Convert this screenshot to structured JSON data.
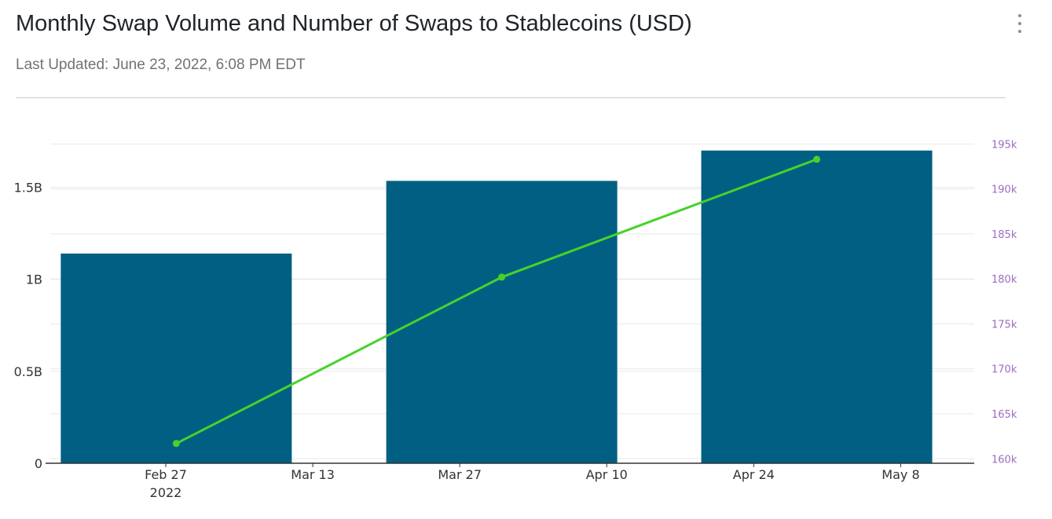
{
  "header": {
    "title": "Monthly Swap Volume and Number of Swaps to Stablecoins (USD)",
    "subtitle": "Last Updated: June 23, 2022, 6:08 PM EDT",
    "menu_icon": "vertical-ellipsis-icon"
  },
  "colors": {
    "bar": "#005f83",
    "line": "#47d22a",
    "right_axis_text": "#9d6cc2",
    "left_axis_text": "#333333",
    "grid": "#e8e8e8"
  },
  "chart_data": {
    "type": "bar",
    "grid": true,
    "x_axis": {
      "type": "date",
      "ticks": [
        {
          "date": "2022-02-27",
          "label": "Feb 27",
          "sublabel": "2022"
        },
        {
          "date": "2022-03-13",
          "label": "Mar 13"
        },
        {
          "date": "2022-03-27",
          "label": "Mar 27"
        },
        {
          "date": "2022-04-10",
          "label": "Apr 10"
        },
        {
          "date": "2022-04-24",
          "label": "Apr 24"
        },
        {
          "date": "2022-05-08",
          "label": "May 8"
        }
      ],
      "range": [
        "2022-02-16",
        "2022-05-15"
      ]
    },
    "y_left": {
      "ticks": [
        {
          "value": 0,
          "label": "0"
        },
        {
          "value": 500000000,
          "label": "0.5B"
        },
        {
          "value": 1000000000,
          "label": "1B"
        },
        {
          "value": 1500000000,
          "label": "1.5B"
        }
      ],
      "range": [
        0,
        1750000000
      ]
    },
    "y_right": {
      "ticks": [
        {
          "value": 160000,
          "label": "160k"
        },
        {
          "value": 165000,
          "label": "165k"
        },
        {
          "value": 170000,
          "label": "170k"
        },
        {
          "value": 175000,
          "label": "175k"
        },
        {
          "value": 180000,
          "label": "180k"
        },
        {
          "value": 185000,
          "label": "185k"
        },
        {
          "value": 190000,
          "label": "190k"
        },
        {
          "value": 195000,
          "label": "195k"
        }
      ],
      "range": [
        159500,
        195300
      ]
    },
    "bars": {
      "axis": "left",
      "points": [
        {
          "date": "2022-02-28",
          "value": 1140000000
        },
        {
          "date": "2022-03-31",
          "value": 1535000000
        },
        {
          "date": "2022-04-30",
          "value": 1700000000
        }
      ]
    },
    "line": {
      "axis": "right",
      "points": [
        {
          "date": "2022-02-28",
          "value": 161700
        },
        {
          "date": "2022-03-31",
          "value": 180200
        },
        {
          "date": "2022-04-30",
          "value": 193300
        }
      ]
    }
  }
}
